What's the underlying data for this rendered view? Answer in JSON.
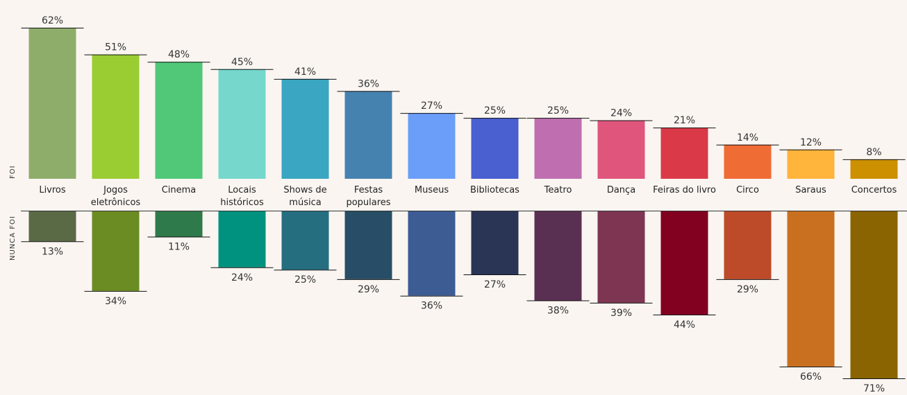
{
  "chart_data": {
    "type": "bar",
    "categories": [
      [
        "Livros"
      ],
      [
        "Jogos",
        "eletrônicos"
      ],
      [
        "Cinema"
      ],
      [
        "Locais",
        "históricos"
      ],
      [
        "Shows de",
        "música"
      ],
      [
        "Festas",
        "populares"
      ],
      [
        "Museus"
      ],
      [
        "Bibliotecas"
      ],
      [
        "Teatro"
      ],
      [
        "Dança"
      ],
      [
        "Feiras do livro"
      ],
      [
        "Circo"
      ],
      [
        "Saraus"
      ],
      [
        "Concertos"
      ]
    ],
    "series": [
      {
        "name": "FOI",
        "values": [
          62,
          51,
          48,
          45,
          41,
          36,
          27,
          25,
          25,
          24,
          21,
          14,
          12,
          8
        ],
        "labels": [
          "62%",
          "51%",
          "48%",
          "45%",
          "41%",
          "36%",
          "27%",
          "25%",
          "25%",
          "24%",
          "21%",
          "14%",
          "12%",
          "8%"
        ],
        "colors": [
          "#8fad6a",
          "#9acd32",
          "#50c878",
          "#76d7cc",
          "#3aa6c2",
          "#4682b0",
          "#6a9ef8",
          "#4a5fd0",
          "#bf6fb0",
          "#e0557c",
          "#da3a48",
          "#f06c35",
          "#ffb43c",
          "#cc9000"
        ]
      },
      {
        "name": "NUNCA FOI",
        "values": [
          13,
          34,
          11,
          24,
          25,
          29,
          36,
          27,
          38,
          39,
          44,
          29,
          66,
          71
        ],
        "labels": [
          "13%",
          "34%",
          "11%",
          "24%",
          "25%",
          "29%",
          "36%",
          "27%",
          "38%",
          "39%",
          "44%",
          "29%",
          "66%",
          "71%"
        ],
        "colors": [
          "#5a6a45",
          "#6a8c22",
          "#2e7a4a",
          "#00927e",
          "#256e80",
          "#274e66",
          "#3d5c94",
          "#2a3555",
          "#5a3052",
          "#7d3552",
          "#820020",
          "#bd4a28",
          "#c87020",
          "#8a6400"
        ]
      }
    ],
    "ylim": [
      0,
      100
    ]
  }
}
